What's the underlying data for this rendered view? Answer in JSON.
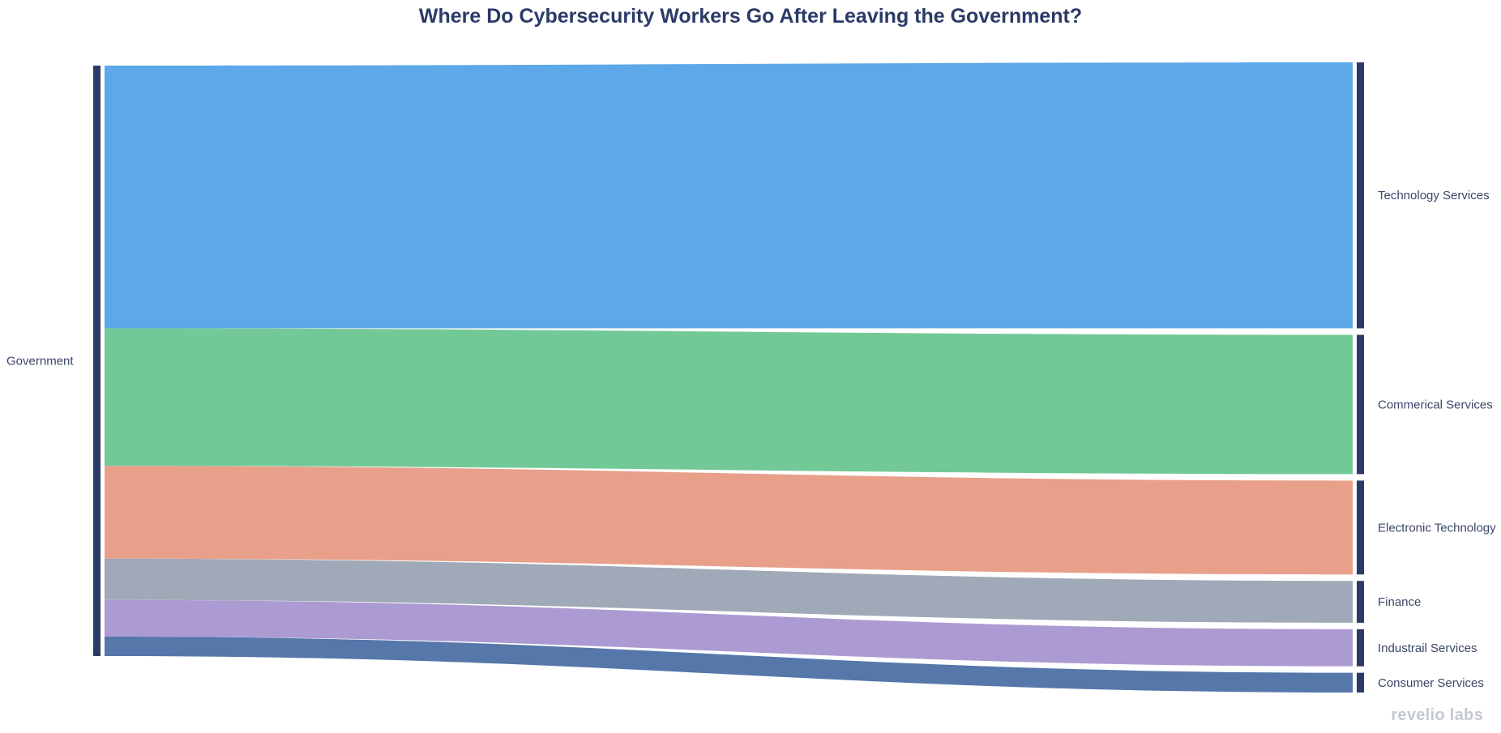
{
  "chart_data": {
    "type": "sankey",
    "title": "Where Do Cybersecurity Workers Go After Leaving the Government?",
    "source": {
      "name": "Government",
      "color": "#2b3a67"
    },
    "targets": [
      {
        "name": "Technology Services",
        "value": 44.5,
        "color": "#5ca8e8"
      },
      {
        "name": "Commerical Services",
        "value": 23.3,
        "color": "#72c997"
      },
      {
        "name": "Electronic Technology",
        "value": 15.7,
        "color": "#e8a08a"
      },
      {
        "name": "Finance",
        "value": 7.0,
        "color": "#a0a9b7"
      },
      {
        "name": "Industrail Services",
        "value": 6.2,
        "color": "#ac9ad2"
      },
      {
        "name": "Consumer Services",
        "value": 3.3,
        "color": "#5577aa"
      }
    ]
  },
  "branding": {
    "watermark": "revelio labs"
  }
}
